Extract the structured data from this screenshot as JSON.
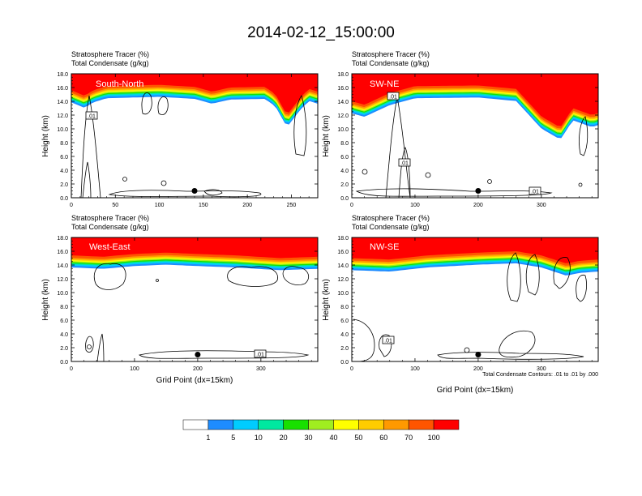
{
  "figure": {
    "title": "2014-02-12_15:00:00",
    "header_line1": "Stratosphere Tracer   (%)",
    "header_line2": "Total Condensate   (g/kg)",
    "y_label": "Height (km)",
    "x_label": "Grid Point (dx=15km)",
    "contour_note": "Total Condensate Contours: .01 to .01 by .000",
    "contour_label": ".01"
  },
  "colorbar": {
    "labels": [
      "1",
      "5",
      "10",
      "20",
      "30",
      "40",
      "50",
      "60",
      "70",
      "100"
    ],
    "colors": [
      "#ffffff",
      "#1e8cff",
      "#00ccff",
      "#00e8a0",
      "#18e000",
      "#a0ee20",
      "#ffff00",
      "#ffcc00",
      "#ff9900",
      "#ff5500",
      "#ff0000"
    ]
  },
  "chart_data": [
    {
      "type": "heatmap",
      "panel_label": "South-North",
      "x_ticks": [
        "0",
        "50",
        "100",
        "150",
        "200",
        "250"
      ],
      "xlim": [
        0,
        280
      ],
      "y_ticks": [
        "0.0",
        "2.0",
        "4.0",
        "6.0",
        "8.0",
        "10.0",
        "12.0",
        "14.0",
        "16.0",
        "18.0"
      ],
      "ylim": [
        0,
        18
      ],
      "tracer_top": [
        [
          0,
          15.6
        ],
        [
          15,
          14.8
        ],
        [
          25,
          15.6
        ],
        [
          40,
          16.2
        ],
        [
          100,
          16.4
        ],
        [
          140,
          16.1
        ],
        [
          160,
          15.4
        ],
        [
          180,
          16.0
        ],
        [
          220,
          16.1
        ],
        [
          232,
          15.0
        ],
        [
          245,
          12.0
        ],
        [
          260,
          14.5
        ],
        [
          270,
          15.8
        ],
        [
          280,
          15.4
        ]
      ],
      "marker": {
        "x": 140,
        "y": 1.0
      }
    },
    {
      "type": "heatmap",
      "panel_label": "SW-NE",
      "x_ticks": [
        "0",
        "100",
        "200",
        "300"
      ],
      "xlim": [
        0,
        390
      ],
      "y_ticks": [
        "0.0",
        "2.0",
        "4.0",
        "6.0",
        "8.0",
        "10.0",
        "12.0",
        "14.0",
        "16.0",
        "18.0"
      ],
      "ylim": [
        0,
        18
      ],
      "tracer_top": [
        [
          0,
          14.0
        ],
        [
          20,
          13.5
        ],
        [
          60,
          15.2
        ],
        [
          100,
          16.2
        ],
        [
          200,
          16.3
        ],
        [
          260,
          15.8
        ],
        [
          280,
          13.8
        ],
        [
          300,
          11.8
        ],
        [
          330,
          10.2
        ],
        [
          350,
          13.0
        ],
        [
          380,
          12.0
        ],
        [
          390,
          12.3
        ]
      ],
      "marker": {
        "x": 200,
        "y": 1.0
      }
    },
    {
      "type": "heatmap",
      "panel_label": "West-East",
      "x_ticks": [
        "0",
        "100",
        "200",
        "300"
      ],
      "xlim": [
        0,
        390
      ],
      "y_ticks": [
        "0.0",
        "2.0",
        "4.0",
        "6.0",
        "8.0",
        "10.0",
        "12.0",
        "14.0",
        "16.0",
        "18.0"
      ],
      "ylim": [
        0,
        18
      ],
      "tracer_top": [
        [
          0,
          15.4
        ],
        [
          50,
          15.2
        ],
        [
          100,
          15.6
        ],
        [
          150,
          15.8
        ],
        [
          200,
          15.6
        ],
        [
          260,
          15.4
        ],
        [
          330,
          15.0
        ],
        [
          390,
          15.2
        ]
      ],
      "marker": {
        "x": 200,
        "y": 1.0
      }
    },
    {
      "type": "heatmap",
      "panel_label": "NW-SE",
      "x_ticks": [
        "0",
        "100",
        "200",
        "300"
      ],
      "xlim": [
        0,
        390
      ],
      "y_ticks": [
        "0.0",
        "2.0",
        "4.0",
        "6.0",
        "8.0",
        "10.0",
        "12.0",
        "14.0",
        "16.0",
        "18.0"
      ],
      "ylim": [
        0,
        18
      ],
      "tracer_top": [
        [
          0,
          15.0
        ],
        [
          60,
          14.8
        ],
        [
          120,
          15.4
        ],
        [
          200,
          15.8
        ],
        [
          260,
          16.0
        ],
        [
          300,
          15.4
        ],
        [
          340,
          14.2
        ],
        [
          360,
          14.6
        ],
        [
          390,
          14.8
        ]
      ],
      "marker": {
        "x": 200,
        "y": 1.0
      }
    }
  ]
}
